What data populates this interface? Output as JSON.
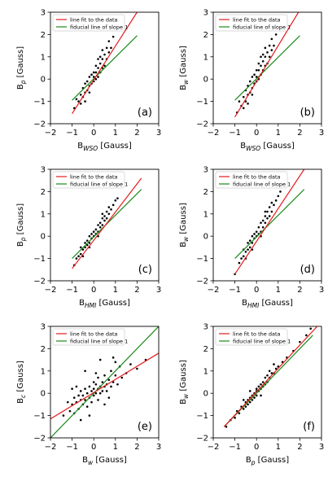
{
  "figure": {
    "legend_line_fit": "line fit to the data",
    "legend_fiducial": "fiducial line of slope 1",
    "colors": {
      "fit": "#e41a1c",
      "fiducial": "#1a8a1a",
      "points": "#000000"
    }
  },
  "chart_data": [
    {
      "type": "scatter",
      "panel_label": "(a)",
      "xlabel_main": "B",
      "xlabel_sub": "WSO",
      "xlabel_unit": " [Gauss]",
      "ylabel_main": "B",
      "ylabel_sub": "p",
      "ylabel_unit": " [Gauss]",
      "xlim": [
        -2,
        3
      ],
      "ylim": [
        -2,
        3
      ],
      "xticks": [
        -2,
        -1,
        0,
        1,
        2,
        3
      ],
      "yticks": [
        -2,
        -1,
        0,
        1,
        2,
        3
      ],
      "legend": "top-left",
      "fit_line": {
        "x": [
          -1.0,
          2.0
        ],
        "y": [
          -1.55,
          3.0
        ]
      },
      "fiducial_line": {
        "x": [
          -1.0,
          2.0
        ],
        "y": [
          -0.95,
          1.95
        ]
      },
      "points": [
        [
          -0.9,
          -1.3
        ],
        [
          -0.7,
          -1.0
        ],
        [
          -0.6,
          -0.7
        ],
        [
          -0.5,
          -0.8
        ],
        [
          -0.5,
          -0.4
        ],
        [
          -0.4,
          -0.6
        ],
        [
          -0.4,
          -0.2
        ],
        [
          -0.3,
          -0.5
        ],
        [
          -0.3,
          -0.1
        ],
        [
          -0.2,
          -0.3
        ],
        [
          -0.2,
          0.1
        ],
        [
          -0.1,
          -0.2
        ],
        [
          -0.1,
          0.2
        ],
        [
          0.0,
          -0.1
        ],
        [
          0.0,
          0.1
        ],
        [
          0.0,
          0.3
        ],
        [
          0.1,
          0.0
        ],
        [
          0.1,
          0.3
        ],
        [
          0.2,
          0.1
        ],
        [
          0.2,
          0.5
        ],
        [
          0.3,
          0.3
        ],
        [
          0.3,
          0.7
        ],
        [
          0.4,
          0.5
        ],
        [
          0.4,
          0.9
        ],
        [
          0.5,
          0.6
        ],
        [
          0.5,
          1.1
        ],
        [
          0.6,
          0.9
        ],
        [
          0.6,
          1.4
        ],
        [
          0.7,
          1.2
        ],
        [
          0.7,
          1.7
        ],
        [
          0.8,
          1.4
        ],
        [
          0.9,
          1.9
        ],
        [
          -0.8,
          -0.9
        ],
        [
          -0.6,
          -1.1
        ],
        [
          0.2,
          0.9
        ],
        [
          0.4,
          1.3
        ],
        [
          -0.2,
          -0.6
        ],
        [
          0.1,
          0.6
        ],
        [
          0.3,
          1.0
        ],
        [
          -0.4,
          -1.0
        ]
      ]
    },
    {
      "type": "scatter",
      "panel_label": "(b)",
      "xlabel_main": "B",
      "xlabel_sub": "WSO",
      "xlabel_unit": " [Gauss]",
      "ylabel_main": "B",
      "ylabel_sub": "w",
      "ylabel_unit": " [Gauss]",
      "xlim": [
        -2,
        3
      ],
      "ylim": [
        -2,
        3
      ],
      "xticks": [
        -2,
        -1,
        0,
        1,
        2,
        3
      ],
      "yticks": [
        -2,
        -1,
        0,
        1,
        2,
        3
      ],
      "legend": "top-left",
      "fit_line": {
        "x": [
          -1.0,
          2.0
        ],
        "y": [
          -1.7,
          3.1
        ]
      },
      "fiducial_line": {
        "x": [
          -1.0,
          2.0
        ],
        "y": [
          -0.95,
          1.95
        ]
      },
      "points": [
        [
          -0.9,
          -1.5
        ],
        [
          -0.7,
          -1.2
        ],
        [
          -0.6,
          -0.8
        ],
        [
          -0.5,
          -1.0
        ],
        [
          -0.5,
          -0.5
        ],
        [
          -0.4,
          -0.7
        ],
        [
          -0.4,
          -0.3
        ],
        [
          -0.3,
          -0.6
        ],
        [
          -0.3,
          -0.1
        ],
        [
          -0.2,
          -0.4
        ],
        [
          -0.2,
          0.1
        ],
        [
          -0.1,
          -0.2
        ],
        [
          -0.1,
          0.2
        ],
        [
          0.0,
          -0.1
        ],
        [
          0.0,
          0.1
        ],
        [
          0.0,
          0.4
        ],
        [
          0.1,
          0.0
        ],
        [
          0.1,
          0.4
        ],
        [
          0.2,
          0.2
        ],
        [
          0.2,
          0.6
        ],
        [
          0.3,
          0.4
        ],
        [
          0.3,
          0.8
        ],
        [
          0.4,
          0.6
        ],
        [
          0.4,
          1.0
        ],
        [
          0.5,
          0.7
        ],
        [
          0.5,
          1.2
        ],
        [
          0.6,
          1.0
        ],
        [
          0.6,
          1.5
        ],
        [
          0.7,
          1.3
        ],
        [
          0.7,
          1.8
        ],
        [
          0.8,
          1.5
        ],
        [
          0.9,
          2.0
        ],
        [
          -0.8,
          -1.0
        ],
        [
          -0.6,
          -1.3
        ],
        [
          0.2,
          1.0
        ],
        [
          0.4,
          1.4
        ],
        [
          -0.2,
          -0.7
        ],
        [
          0.1,
          0.7
        ],
        [
          0.3,
          1.1
        ],
        [
          -0.4,
          -1.1
        ]
      ]
    },
    {
      "type": "scatter",
      "panel_label": "(c)",
      "xlabel_main": "B",
      "xlabel_sub": "HMI",
      "xlabel_unit": " [Gauss]",
      "ylabel_main": "B",
      "ylabel_sub": "p",
      "ylabel_unit": " [Gauss]",
      "xlim": [
        -2,
        3
      ],
      "ylim": [
        -2,
        3
      ],
      "xticks": [
        -2,
        -1,
        0,
        1,
        2,
        3
      ],
      "yticks": [
        -2,
        -1,
        0,
        1,
        2,
        3
      ],
      "legend": "top-left",
      "fit_line": {
        "x": [
          -1.0,
          2.2
        ],
        "y": [
          -1.45,
          2.6
        ]
      },
      "fiducial_line": {
        "x": [
          -1.0,
          2.2
        ],
        "y": [
          -1.0,
          2.1
        ]
      },
      "points": [
        [
          -0.9,
          -1.3
        ],
        [
          -0.8,
          -1.0
        ],
        [
          -0.7,
          -0.9
        ],
        [
          -0.6,
          -0.8
        ],
        [
          -0.5,
          -0.6
        ],
        [
          -0.4,
          -0.5
        ],
        [
          -0.4,
          -0.3
        ],
        [
          -0.3,
          -0.4
        ],
        [
          -0.3,
          -0.2
        ],
        [
          -0.2,
          -0.3
        ],
        [
          -0.2,
          0.0
        ],
        [
          -0.1,
          -0.1
        ],
        [
          -0.1,
          0.1
        ],
        [
          0.0,
          0.0
        ],
        [
          0.0,
          0.2
        ],
        [
          0.1,
          0.1
        ],
        [
          0.1,
          0.3
        ],
        [
          0.2,
          0.2
        ],
        [
          0.2,
          0.5
        ],
        [
          0.3,
          0.4
        ],
        [
          0.3,
          0.6
        ],
        [
          0.4,
          0.5
        ],
        [
          0.4,
          0.8
        ],
        [
          0.5,
          0.7
        ],
        [
          0.5,
          0.9
        ],
        [
          0.6,
          0.8
        ],
        [
          0.6,
          1.1
        ],
        [
          0.7,
          1.0
        ],
        [
          0.8,
          1.2
        ],
        [
          0.9,
          1.4
        ],
        [
          1.0,
          1.6
        ],
        [
          1.1,
          1.7
        ],
        [
          -0.6,
          -0.5
        ],
        [
          -0.2,
          -0.5
        ],
        [
          0.2,
          0.0
        ],
        [
          0.4,
          1.0
        ],
        [
          0.7,
          1.3
        ],
        [
          -0.5,
          -0.9
        ]
      ]
    },
    {
      "type": "scatter",
      "panel_label": "(d)",
      "xlabel_main": "B",
      "xlabel_sub": "HMI",
      "xlabel_unit": " [Gauss]",
      "ylabel_main": "B",
      "ylabel_sub": "w",
      "ylabel_unit": " [Gauss]",
      "xlim": [
        -2,
        3
      ],
      "ylim": [
        -2,
        3
      ],
      "xticks": [
        -2,
        -1,
        0,
        1,
        2,
        3
      ],
      "yticks": [
        -2,
        -1,
        0,
        1,
        2,
        3
      ],
      "legend": "top-left",
      "fit_line": {
        "x": [
          -1.0,
          2.2
        ],
        "y": [
          -1.7,
          3.0
        ]
      },
      "fiducial_line": {
        "x": [
          -1.0,
          2.2
        ],
        "y": [
          -1.0,
          2.1
        ]
      },
      "points": [
        [
          -1.0,
          -1.7
        ],
        [
          -0.8,
          -1.2
        ],
        [
          -0.7,
          -1.0
        ],
        [
          -0.6,
          -0.9
        ],
        [
          -0.5,
          -0.7
        ],
        [
          -0.4,
          -0.6
        ],
        [
          -0.4,
          -0.3
        ],
        [
          -0.3,
          -0.5
        ],
        [
          -0.3,
          -0.2
        ],
        [
          -0.2,
          -0.3
        ],
        [
          -0.2,
          0.0
        ],
        [
          -0.1,
          -0.1
        ],
        [
          -0.1,
          0.1
        ],
        [
          0.0,
          0.0
        ],
        [
          0.0,
          0.2
        ],
        [
          0.1,
          0.1
        ],
        [
          0.1,
          0.4
        ],
        [
          0.2,
          0.2
        ],
        [
          0.2,
          0.6
        ],
        [
          0.3,
          0.4
        ],
        [
          0.3,
          0.7
        ],
        [
          0.4,
          0.6
        ],
        [
          0.4,
          0.9
        ],
        [
          0.5,
          0.8
        ],
        [
          0.5,
          1.1
        ],
        [
          0.6,
          0.9
        ],
        [
          0.6,
          1.3
        ],
        [
          0.7,
          1.1
        ],
        [
          0.8,
          1.4
        ],
        [
          0.9,
          1.6
        ],
        [
          1.0,
          1.8
        ],
        [
          -0.6,
          -0.6
        ],
        [
          -0.2,
          -0.6
        ],
        [
          0.2,
          0.0
        ],
        [
          0.4,
          1.1
        ],
        [
          0.7,
          1.5
        ],
        [
          -0.5,
          -1.0
        ],
        [
          1.1,
          2.0
        ]
      ]
    },
    {
      "type": "scatter",
      "panel_label": "(e)",
      "xlabel_main": "B",
      "xlabel_sub": "w",
      "xlabel_unit": " [Gauss]",
      "ylabel_main": "B",
      "ylabel_sub": "c",
      "ylabel_unit": " [Gauss]",
      "xlim": [
        -2,
        3
      ],
      "ylim": [
        -2,
        3
      ],
      "xticks": [
        -2,
        -1,
        0,
        1,
        2,
        3
      ],
      "yticks": [
        -2,
        -1,
        0,
        1,
        2,
        3
      ],
      "legend": "top-left",
      "fit_line": {
        "x": [
          -2.0,
          3.0
        ],
        "y": [
          -1.15,
          1.8
        ]
      },
      "fiducial_line": {
        "x": [
          -2.0,
          3.0
        ],
        "y": [
          -2.0,
          3.0
        ]
      },
      "points": [
        [
          -1.4,
          -1.0
        ],
        [
          -1.2,
          -0.4
        ],
        [
          -1.1,
          -0.8
        ],
        [
          -1.0,
          -0.5
        ],
        [
          -0.9,
          -0.2
        ],
        [
          -0.9,
          -0.9
        ],
        [
          -0.8,
          -0.4
        ],
        [
          -0.7,
          -0.1
        ],
        [
          -0.7,
          -0.7
        ],
        [
          -0.6,
          -0.3
        ],
        [
          -0.6,
          0.1
        ],
        [
          -0.5,
          -0.5
        ],
        [
          -0.5,
          -0.1
        ],
        [
          -0.4,
          0.2
        ],
        [
          -0.4,
          -0.3
        ],
        [
          -0.3,
          0.0
        ],
        [
          -0.3,
          -0.6
        ],
        [
          -0.2,
          0.3
        ],
        [
          -0.2,
          -0.2
        ],
        [
          -0.1,
          0.1
        ],
        [
          -0.1,
          -0.4
        ],
        [
          0.0,
          0.2
        ],
        [
          0.0,
          -0.1
        ],
        [
          0.0,
          0.5
        ],
        [
          0.1,
          0.0
        ],
        [
          0.1,
          0.4
        ],
        [
          0.2,
          0.2
        ],
        [
          0.2,
          -0.3
        ],
        [
          0.2,
          0.7
        ],
        [
          0.3,
          0.3
        ],
        [
          0.3,
          0.0
        ],
        [
          0.4,
          0.5
        ],
        [
          0.4,
          0.1
        ],
        [
          0.5,
          0.3
        ],
        [
          0.5,
          0.8
        ],
        [
          0.6,
          0.4
        ],
        [
          0.6,
          0.1
        ],
        [
          0.7,
          0.6
        ],
        [
          0.8,
          0.3
        ],
        [
          0.8,
          1.0
        ],
        [
          0.9,
          0.5
        ],
        [
          1.0,
          0.8
        ],
        [
          1.1,
          0.4
        ],
        [
          1.2,
          1.2
        ],
        [
          1.3,
          0.7
        ],
        [
          1.5,
          0.9
        ],
        [
          1.7,
          1.3
        ],
        [
          2.0,
          1.1
        ],
        [
          -0.4,
          1.0
        ],
        [
          0.3,
          1.5
        ],
        [
          0.9,
          1.6
        ],
        [
          -0.2,
          -1.0
        ],
        [
          0.5,
          -0.5
        ],
        [
          -1.0,
          0.2
        ],
        [
          2.4,
          1.5
        ],
        [
          1.0,
          1.4
        ],
        [
          0.7,
          -0.2
        ],
        [
          -0.8,
          0.3
        ],
        [
          0.1,
          0.9
        ],
        [
          -0.6,
          -1.2
        ]
      ]
    },
    {
      "type": "scatter",
      "panel_label": "(f)",
      "xlabel_main": "B",
      "xlabel_sub": "p",
      "xlabel_unit": " [Gauss]",
      "ylabel_main": "B",
      "ylabel_sub": "w",
      "ylabel_unit": " [Gauss]",
      "xlim": [
        -2,
        3
      ],
      "ylim": [
        -2,
        3
      ],
      "xticks": [
        -2,
        -1,
        0,
        1,
        2,
        3
      ],
      "yticks": [
        -2,
        -1,
        0,
        1,
        2,
        3
      ],
      "legend": "top-left",
      "fit_line": {
        "x": [
          -1.5,
          2.8
        ],
        "y": [
          -1.5,
          3.0
        ]
      },
      "fiducial_line": {
        "x": [
          -1.5,
          2.6
        ],
        "y": [
          -1.5,
          2.6
        ]
      },
      "points": [
        [
          -1.4,
          -1.5
        ],
        [
          -1.2,
          -1.2
        ],
        [
          -1.0,
          -1.1
        ],
        [
          -0.9,
          -0.8
        ],
        [
          -0.8,
          -0.9
        ],
        [
          -0.7,
          -0.6
        ],
        [
          -0.6,
          -0.7
        ],
        [
          -0.5,
          -0.4
        ],
        [
          -0.5,
          -0.6
        ],
        [
          -0.4,
          -0.3
        ],
        [
          -0.4,
          -0.5
        ],
        [
          -0.3,
          -0.2
        ],
        [
          -0.3,
          -0.4
        ],
        [
          -0.2,
          -0.1
        ],
        [
          -0.2,
          -0.3
        ],
        [
          -0.1,
          0.0
        ],
        [
          -0.1,
          -0.2
        ],
        [
          0.0,
          0.1
        ],
        [
          0.0,
          -0.1
        ],
        [
          0.0,
          0.2
        ],
        [
          0.1,
          0.1
        ],
        [
          0.1,
          0.3
        ],
        [
          0.2,
          0.2
        ],
        [
          0.2,
          0.4
        ],
        [
          0.3,
          0.3
        ],
        [
          0.3,
          0.5
        ],
        [
          0.4,
          0.4
        ],
        [
          0.4,
          0.7
        ],
        [
          0.5,
          0.5
        ],
        [
          0.5,
          0.8
        ],
        [
          0.6,
          0.7
        ],
        [
          0.7,
          0.9
        ],
        [
          0.8,
          0.9
        ],
        [
          0.9,
          1.1
        ],
        [
          1.0,
          1.2
        ],
        [
          1.2,
          1.4
        ],
        [
          1.4,
          1.6
        ],
        [
          1.7,
          1.9
        ],
        [
          2.0,
          2.3
        ],
        [
          2.3,
          2.6
        ],
        [
          2.5,
          2.9
        ],
        [
          0.6,
          1.0
        ],
        [
          -0.3,
          0.1
        ],
        [
          0.2,
          -0.1
        ],
        [
          0.8,
          1.3
        ],
        [
          -0.6,
          -0.3
        ]
      ]
    }
  ]
}
